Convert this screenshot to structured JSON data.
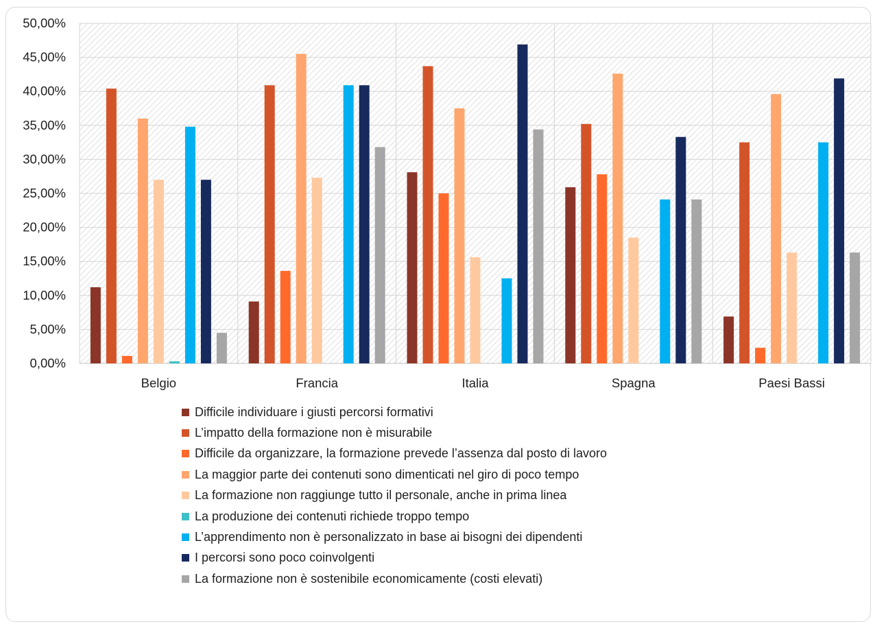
{
  "chart_data": {
    "type": "bar",
    "categories": [
      "Belgio",
      "Francia",
      "Italia",
      "Spagna",
      "Paesi Bassi"
    ],
    "ylim": [
      0,
      50
    ],
    "ytick_labels": [
      "0,00%",
      "5,00%",
      "10,00%",
      "15,00%",
      "20,00%",
      "25,00%",
      "30,00%",
      "35,00%",
      "40,00%",
      "45,00%",
      "50,00%"
    ],
    "grid": true,
    "legend_position": "bottom",
    "series": [
      {
        "name": "Difficile individuare i giusti percorsi formativi",
        "color": "#8B3528",
        "values": [
          11.2,
          9.1,
          28.1,
          25.9,
          6.9
        ]
      },
      {
        "name": "L’impatto della formazione non è misurabile",
        "color": "#D4542A",
        "values": [
          40.4,
          40.9,
          43.7,
          35.2,
          32.5
        ]
      },
      {
        "name": "Difficile da organizzare, la formazione prevede l’assenza dal posto di lavoro",
        "color": "#FF6A2C",
        "values": [
          1.1,
          13.6,
          25.0,
          27.8,
          2.3
        ]
      },
      {
        "name": "La maggior parte dei contenuti sono dimenticati nel giro di poco tempo",
        "color": "#FFA66E",
        "values": [
          36.0,
          45.5,
          37.5,
          42.6,
          39.6
        ]
      },
      {
        "name": "La formazione non raggiunge tutto il personale, anche in prima linea",
        "color": "#FFC9A0",
        "values": [
          27.0,
          27.3,
          15.6,
          18.5,
          16.3
        ]
      },
      {
        "name": "La produzione dei contenuti richiede troppo tempo",
        "color": "#3FBFC6",
        "values": [
          0.3,
          0,
          0,
          0,
          0
        ]
      },
      {
        "name": "L’apprendimento non è personalizzato in base ai bisogni dei dipendenti",
        "color": "#00B0F0",
        "values": [
          34.8,
          40.9,
          12.5,
          24.1,
          32.5
        ]
      },
      {
        "name": "I percorsi sono poco coinvolgenti",
        "color": "#172A5E",
        "values": [
          27.0,
          40.9,
          46.9,
          33.3,
          41.9
        ]
      },
      {
        "name": "La formazione non è sostenibile economicamente (costi elevati)",
        "color": "#A6A6A6",
        "values": [
          4.5,
          31.8,
          34.4,
          24.1,
          16.3
        ]
      }
    ]
  }
}
